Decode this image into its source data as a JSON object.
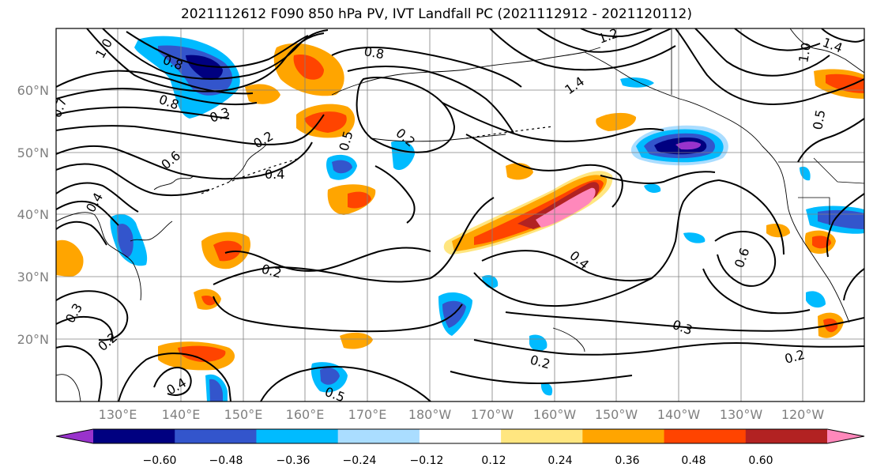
{
  "figure": {
    "title": "2021112612 F090 850 hPa PV, IVT Landfall PC (2021112912 - 2021120112)"
  },
  "map": {
    "lat_ticks": [
      "60°N",
      "50°N",
      "40°N",
      "30°N",
      "20°N"
    ],
    "lon_ticks": [
      "130°E",
      "140°E",
      "150°E",
      "160°E",
      "170°E",
      "180°W",
      "170°W",
      "160°W",
      "150°W",
      "140°W",
      "130°W",
      "120°W"
    ],
    "contour_labels": [
      "1.0",
      "0.8",
      "0.7",
      "0.8",
      "0.2",
      "0.5",
      "0.4",
      "0.2",
      "0.6",
      "0.8",
      "1.2",
      "1.4",
      "0.2",
      "0.4",
      "0.3",
      "0.2",
      "0.6",
      "0.5",
      "0.3",
      "0.2",
      "0.4",
      "0.5",
      "1.0",
      "1.4",
      "0.3",
      "0.2",
      "0.4"
    ]
  },
  "colorbar": {
    "tick_labels": [
      "−0.60",
      "−0.48",
      "−0.36",
      "−0.24",
      "−0.12",
      "0.12",
      "0.24",
      "0.36",
      "0.48",
      "0.60"
    ],
    "colors": [
      "#9933cc",
      "#000080",
      "#3355cc",
      "#00bbff",
      "#aaddff",
      "#ffffff",
      "#ffe680",
      "#ffa500",
      "#ff4400",
      "#b22222",
      "#ff88bb"
    ]
  }
}
